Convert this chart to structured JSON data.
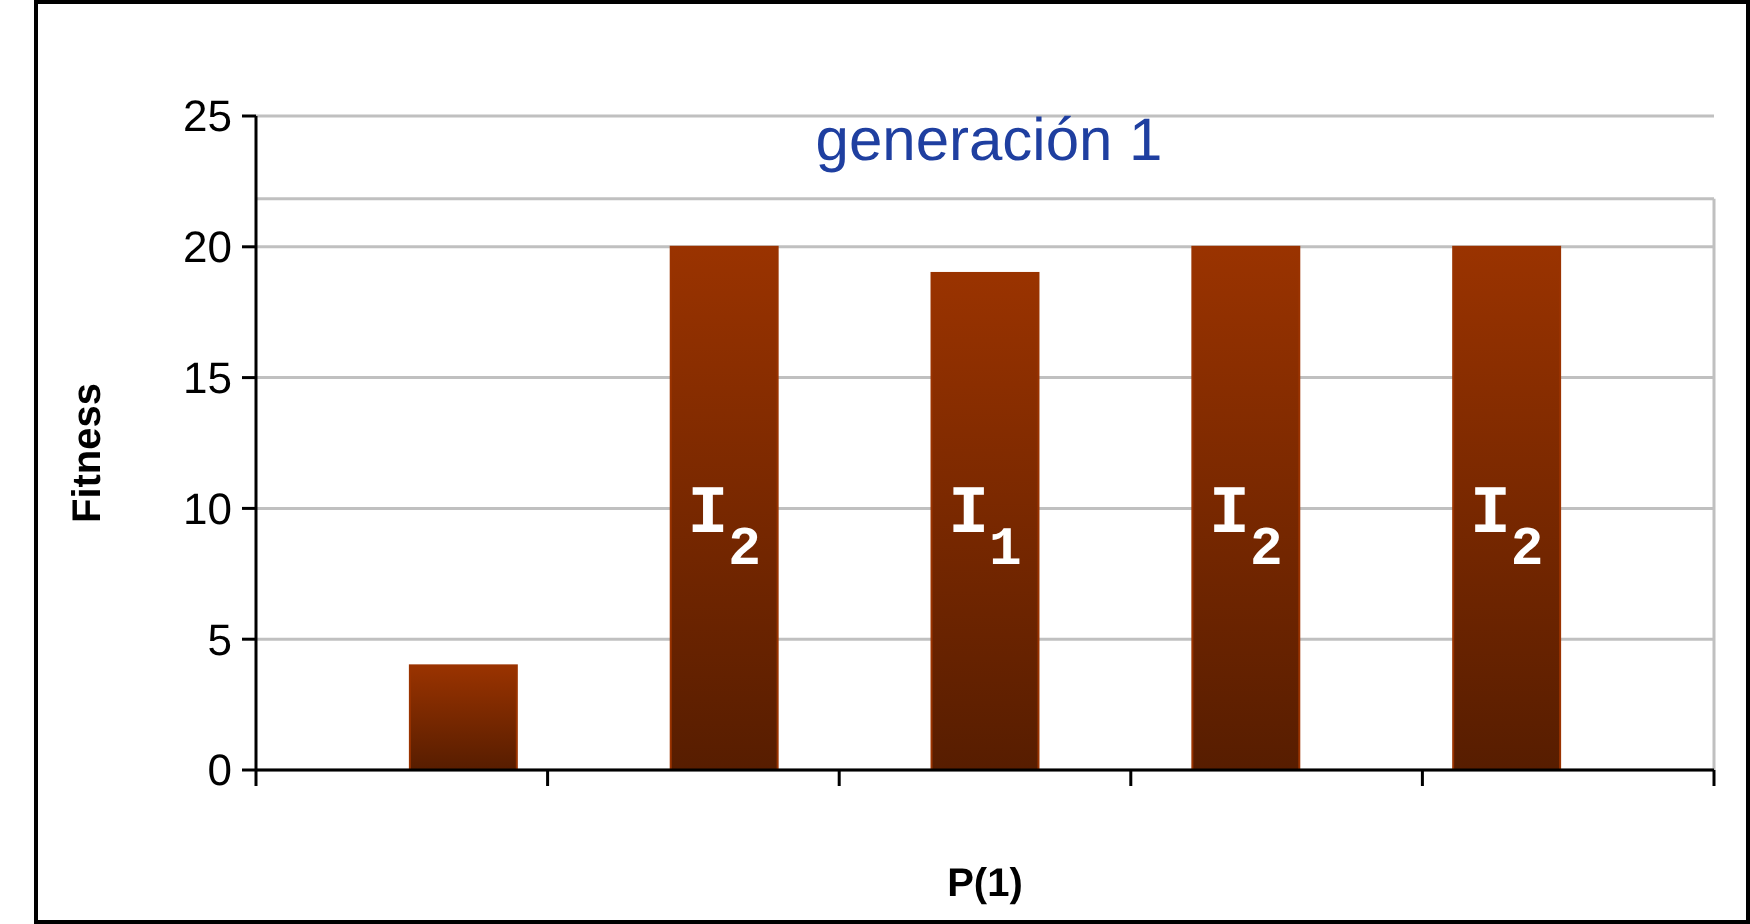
{
  "chart_data": {
    "type": "bar",
    "title": "generación 1",
    "xlabel": "P(1)",
    "ylabel": "Fitness",
    "categories": [
      null,
      null,
      null,
      null,
      null
    ],
    "values": [
      4,
      20,
      19,
      20,
      20
    ],
    "annotations": [
      "I$_{2}$",
      "I$_{1}$",
      "I$_{2}$",
      "I$_{2}$"
    ],
    "color": "#9a3300",
    "ylim": [
      0,
      25
    ],
    "yticks": [
      0,
      5,
      10,
      15,
      20,
      25
    ],
    "grid": "y"
  }
}
